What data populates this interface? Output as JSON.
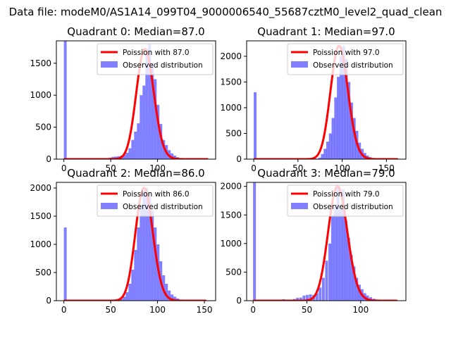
{
  "suptitle": "Data file: modeM0/AS1A14_099T04_9000006540_55687cztM0_level2_quad_clean",
  "legend": {
    "observed_label": "Observed distribution",
    "poisson_prefix": "Poission with "
  },
  "colors": {
    "hist": "#0000ff",
    "poisson": "#ff0000"
  },
  "chart_data": [
    {
      "type": "bar",
      "title": "Quadrant 0: Median=87.0",
      "median": "87.0",
      "xlim": [
        -8,
        162
      ],
      "ylim": [
        0,
        1850
      ],
      "xticks": [
        0,
        50,
        100
      ],
      "yticks": [
        0,
        500,
        1000,
        1500
      ],
      "bin_width": 3,
      "bins": [
        [
          0,
          1850
        ],
        [
          18,
          5
        ],
        [
          27,
          10
        ],
        [
          36,
          5
        ],
        [
          45,
          12
        ],
        [
          48,
          25
        ],
        [
          51,
          35
        ],
        [
          54,
          40
        ],
        [
          57,
          45
        ],
        [
          60,
          55
        ],
        [
          63,
          70
        ],
        [
          66,
          100
        ],
        [
          69,
          170
        ],
        [
          72,
          300
        ],
        [
          75,
          430
        ],
        [
          78,
          560
        ],
        [
          81,
          1000
        ],
        [
          84,
          1150
        ],
        [
          87,
          1720
        ],
        [
          90,
          1800
        ],
        [
          93,
          1500
        ],
        [
          96,
          1250
        ],
        [
          99,
          850
        ],
        [
          102,
          550
        ],
        [
          105,
          300
        ],
        [
          108,
          220
        ],
        [
          111,
          140
        ],
        [
          114,
          90
        ],
        [
          117,
          55
        ],
        [
          120,
          30
        ],
        [
          123,
          15
        ],
        [
          126,
          8
        ]
      ],
      "poisson": {
        "mean": 87,
        "peak": 1720,
        "xrange": [
          0,
          154
        ]
      }
    },
    {
      "type": "bar",
      "title": "Quadrant 1: Median=97.0",
      "median": "97.0",
      "xlim": [
        -8,
        172
      ],
      "ylim": [
        0,
        2300
      ],
      "xticks": [
        0,
        50,
        100,
        150
      ],
      "yticks": [
        0,
        500,
        1000,
        1500,
        2000
      ],
      "bin_width": 3.2,
      "bins": [
        [
          0,
          1300
        ],
        [
          70,
          10
        ],
        [
          73,
          30
        ],
        [
          76,
          100
        ],
        [
          79,
          200
        ],
        [
          82,
          340
        ],
        [
          85,
          500
        ],
        [
          88,
          800
        ],
        [
          91,
          1200
        ],
        [
          94,
          1600
        ],
        [
          97,
          2000
        ],
        [
          100,
          2200
        ],
        [
          103,
          1950
        ],
        [
          106,
          1500
        ],
        [
          109,
          1100
        ],
        [
          112,
          800
        ],
        [
          115,
          550
        ],
        [
          118,
          320
        ],
        [
          121,
          200
        ],
        [
          124,
          120
        ],
        [
          127,
          70
        ],
        [
          130,
          40
        ],
        [
          133,
          20
        ],
        [
          136,
          10
        ]
      ],
      "poisson": {
        "mean": 97,
        "peak": 2200,
        "xrange": [
          0,
          163
        ]
      }
    },
    {
      "type": "bar",
      "title": "Quadrant 2: Median=86.0",
      "median": "86.0",
      "xlim": [
        -8,
        162
      ],
      "ylim": [
        0,
        2100
      ],
      "xticks": [
        0,
        50,
        100,
        150
      ],
      "yticks": [
        0,
        500,
        1000,
        1500,
        2000
      ],
      "bin_width": 3,
      "bins": [
        [
          0,
          1300
        ],
        [
          57,
          10
        ],
        [
          60,
          30
        ],
        [
          63,
          70
        ],
        [
          66,
          150
        ],
        [
          69,
          300
        ],
        [
          72,
          550
        ],
        [
          75,
          900
        ],
        [
          78,
          1300
        ],
        [
          81,
          1700
        ],
        [
          84,
          1950
        ],
        [
          87,
          2000
        ],
        [
          90,
          1850
        ],
        [
          93,
          1600
        ],
        [
          96,
          1300
        ],
        [
          99,
          1000
        ],
        [
          102,
          700
        ],
        [
          105,
          450
        ],
        [
          108,
          300
        ],
        [
          111,
          180
        ],
        [
          114,
          110
        ],
        [
          117,
          70
        ],
        [
          120,
          40
        ],
        [
          123,
          20
        ],
        [
          126,
          10
        ]
      ],
      "poisson": {
        "mean": 86,
        "peak": 2000,
        "xrange": [
          0,
          152
        ]
      }
    },
    {
      "type": "bar",
      "title": "Quadrant 3: Median=79.0",
      "median": "79.0",
      "xlim": [
        -6,
        142
      ],
      "ylim": [
        0,
        2070
      ],
      "xticks": [
        0,
        50,
        100
      ],
      "yticks": [
        0,
        500,
        1000,
        1500,
        2000
      ],
      "bin_width": 2.6,
      "bins": [
        [
          0,
          2070
        ],
        [
          19,
          10
        ],
        [
          27,
          25
        ],
        [
          32,
          15
        ],
        [
          37,
          30
        ],
        [
          40,
          50
        ],
        [
          43,
          55
        ],
        [
          46,
          90
        ],
        [
          49,
          100
        ],
        [
          52,
          110
        ],
        [
          55,
          100
        ],
        [
          58,
          130
        ],
        [
          61,
          230
        ],
        [
          64,
          400
        ],
        [
          67,
          700
        ],
        [
          70,
          1000
        ],
        [
          72.5,
          1500
        ],
        [
          75,
          1650
        ],
        [
          77.5,
          2000
        ],
        [
          80,
          1600
        ],
        [
          82.5,
          1950
        ],
        [
          85,
          1400
        ],
        [
          87.5,
          1100
        ],
        [
          90,
          800
        ],
        [
          92.5,
          600
        ],
        [
          95,
          400
        ],
        [
          97.5,
          280
        ],
        [
          100,
          200
        ],
        [
          102.5,
          130
        ],
        [
          105,
          90
        ],
        [
          108,
          60
        ],
        [
          111,
          35
        ],
        [
          114,
          20
        ],
        [
          117,
          10
        ]
      ],
      "poisson": {
        "mean": 79,
        "peak": 2000,
        "xrange": [
          0,
          134
        ]
      }
    }
  ]
}
